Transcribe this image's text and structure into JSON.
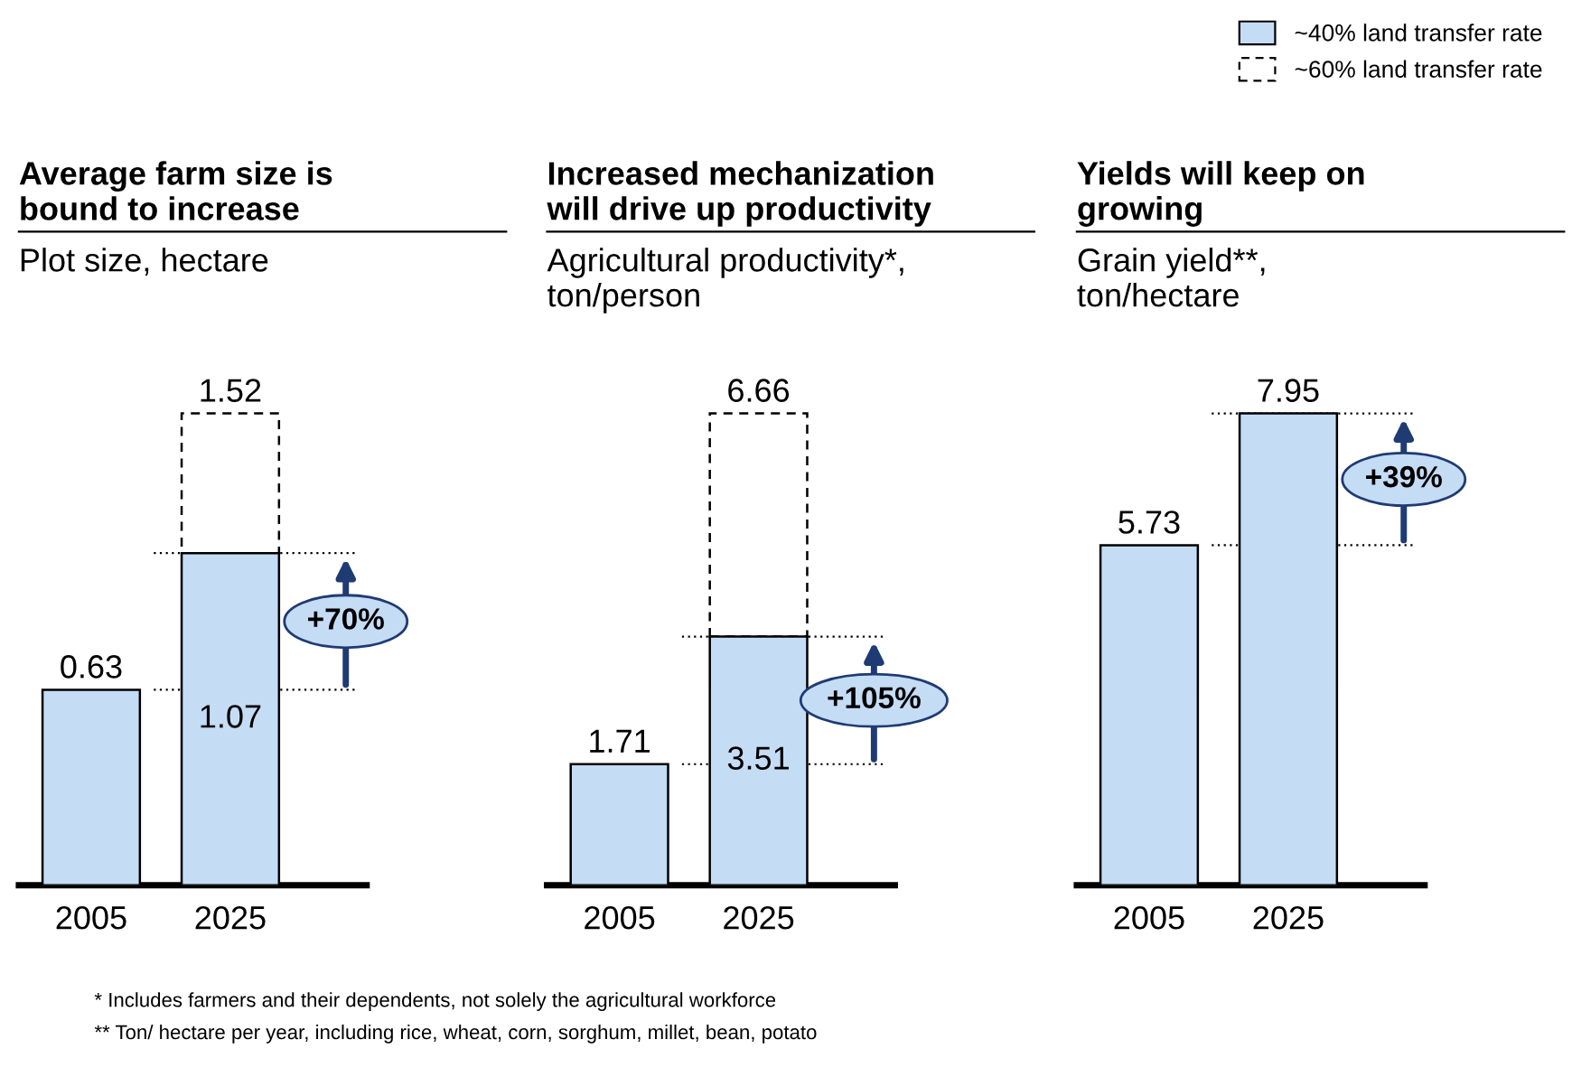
{
  "chart_data": [
    {
      "type": "bar",
      "title": "Average farm size is\nbound to increase",
      "subtitle": "Plot size, hectare",
      "categories": [
        "2005",
        "2025"
      ],
      "stacked": true,
      "totals": [
        null,
        "1.52"
      ],
      "legend": "top right",
      "grid": false,
      "series": [
        {
          "name": "~40% land transfer rate",
          "color": "#c5dcf5",
          "values": [
            0.63,
            1.07
          ],
          "value_labels": [
            "0.63",
            "1.07"
          ]
        },
        {
          "name": "~60% land transfer rate",
          "color": "#ffffff",
          "line_style": "dashed",
          "values": [
            null,
            0.45
          ]
        }
      ],
      "ref_lines": [
        {
          "axis": "y",
          "value": 0.63,
          "line_style": "dotted"
        },
        {
          "axis": "y",
          "value": 1.07,
          "line_style": "dotted"
        }
      ],
      "annotations": [
        "+70%",
        "* Includes farmers and their dependents, not solely the agricultural workforce",
        "** Ton/ hectare per year, including rice, wheat, corn, sorghum, millet, bean, potato"
      ]
    },
    {
      "type": "bar",
      "title": "Increased mechanization\nwill drive up productivity",
      "subtitle": "Agricultural productivity*,\nton/person",
      "categories": [
        "2005",
        "2025"
      ],
      "stacked": true,
      "totals": [
        null,
        "6.66"
      ],
      "grid": false,
      "series": [
        {
          "color": "#c5dcf5",
          "values": [
            1.71,
            3.51
          ],
          "value_labels": [
            "1.71",
            "3.51"
          ]
        },
        {
          "color": "#ffffff",
          "line_style": "dashed",
          "values": [
            null,
            3.15
          ]
        }
      ],
      "ref_lines": [
        {
          "axis": "y",
          "value": 1.71,
          "line_style": "dotted"
        },
        {
          "axis": "y",
          "value": 3.51,
          "line_style": "dotted"
        }
      ],
      "annotations": [
        "+105%"
      ]
    },
    {
      "type": "bar",
      "title": "Yields will keep on\ngrowing",
      "subtitle": "Grain yield**,\nton/hectare",
      "categories": [
        "2005",
        "2025"
      ],
      "grid": false,
      "series": [
        {
          "color": "#c5dcf5",
          "values": [
            5.73,
            7.95
          ],
          "value_labels": [
            "5.73",
            "7.95"
          ]
        }
      ],
      "ref_lines": [
        {
          "axis": "y",
          "value": 5.73,
          "line_style": "dotted"
        },
        {
          "axis": "y",
          "value": 7.95,
          "line_style": "dotted"
        }
      ],
      "annotations": [
        "+39%"
      ]
    }
  ]
}
